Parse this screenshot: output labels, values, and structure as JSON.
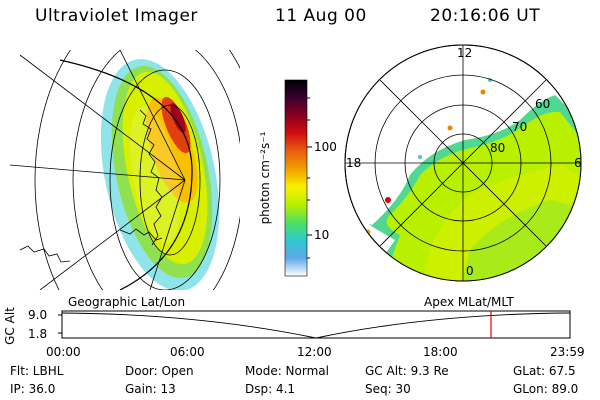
{
  "header": {
    "title": "Ultraviolet Imager",
    "date": "11 Aug 00",
    "time": "20:16:06 UT"
  },
  "colorbar": {
    "label": "photon cm⁻²s⁻¹",
    "ticks": [
      "100",
      "10"
    ],
    "gradient_colors": [
      "#000000",
      "#3a0030",
      "#8a0020",
      "#d01010",
      "#e86010",
      "#f0a000",
      "#f8f000",
      "#b8f000",
      "#50e060",
      "#30c8d0",
      "#60a8e8",
      "#ffffff"
    ]
  },
  "left_panel": {
    "label": "Geographic Lat/Lon"
  },
  "right_panel": {
    "label": "Apex MLat/MLT",
    "mlt_labels": {
      "top": "12",
      "left": "18",
      "right": "6",
      "bottom": "0"
    },
    "lat_labels": [
      "60",
      "70",
      "80"
    ]
  },
  "timeline": {
    "ylabel": "GC Alt",
    "y_ticks": [
      "9.0",
      "1.8"
    ],
    "x_ticks": [
      "00:00",
      "06:00",
      "12:00",
      "18:00",
      "23:59"
    ],
    "current_time_fraction": 0.8445,
    "marker_color": "#e00000"
  },
  "info": {
    "flt": "Flt: LBHL",
    "door": "Door: Open",
    "mode": "Mode: Normal",
    "gcalt": "GC Alt: 9.3 Re",
    "glat": "GLat: 67.5",
    "ip": "IP: 36.0",
    "gain": "Gain: 13",
    "dsp": "Dsp:    4.1",
    "seq": "Seq: 30",
    "glon": "GLon: 89.0"
  }
}
